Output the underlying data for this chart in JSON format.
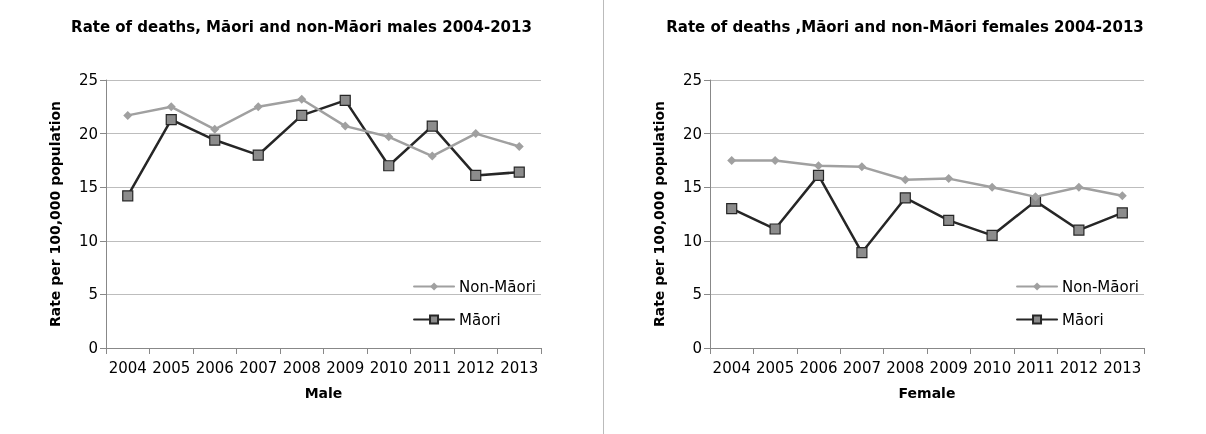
{
  "chart_data": [
    {
      "type": "line",
      "title": "Rate of deaths, Māori and non-Māori males 2004-2013",
      "xlabel": "Male",
      "ylabel": "Rate per 100,000 population",
      "categories": [
        "2004",
        "2005",
        "2006",
        "2007",
        "2008",
        "2009",
        "2010",
        "2011",
        "2012",
        "2013"
      ],
      "series": [
        {
          "name": "Non-Māori",
          "color": "#a0a0a0",
          "marker": "diamond",
          "values": [
            21.7,
            22.5,
            20.4,
            22.5,
            23.2,
            20.7,
            19.7,
            17.9,
            20.0,
            18.8
          ]
        },
        {
          "name": "Māori",
          "color": "#262626",
          "marker": "square",
          "values": [
            14.2,
            21.3,
            19.4,
            18.0,
            21.7,
            23.1,
            17.0,
            20.7,
            16.1,
            16.4
          ]
        }
      ],
      "ylim": [
        0,
        25
      ],
      "yticks": [
        0,
        5,
        10,
        15,
        20,
        25
      ],
      "grid": "y",
      "legend": "bottom right"
    },
    {
      "type": "line",
      "title": "Rate of deaths ,Māori and non-Māori females 2004-2013",
      "xlabel": "Female",
      "ylabel": "Rate per 100,000 population",
      "categories": [
        "2004",
        "2005",
        "2006",
        "2007",
        "2008",
        "2009",
        "2010",
        "2011",
        "2012",
        "2013"
      ],
      "series": [
        {
          "name": "Non-Māori",
          "color": "#a0a0a0",
          "marker": "diamond",
          "values": [
            17.5,
            17.5,
            17.0,
            16.9,
            15.7,
            15.8,
            15.0,
            14.1,
            15.0,
            14.2
          ]
        },
        {
          "name": "Māori",
          "color": "#262626",
          "marker": "square",
          "values": [
            13.0,
            11.1,
            16.1,
            8.9,
            14.0,
            11.9,
            10.5,
            13.7,
            11.0,
            12.6
          ]
        }
      ],
      "ylim": [
        0,
        25
      ],
      "yticks": [
        0,
        5,
        10,
        15,
        20,
        25
      ],
      "grid": "y",
      "legend": "bottom right"
    }
  ]
}
